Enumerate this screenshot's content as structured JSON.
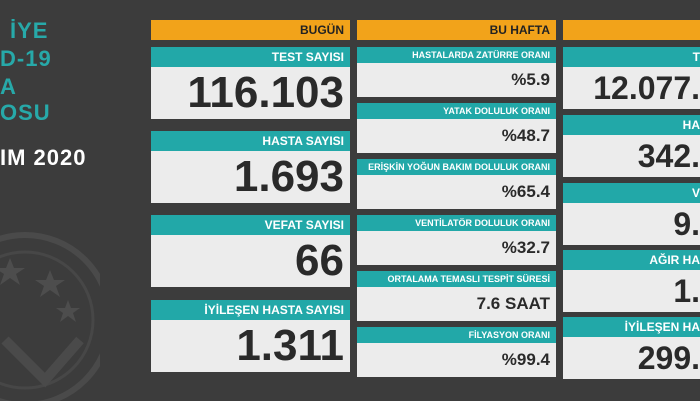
{
  "left_panel": {
    "line1": "İYE",
    "line2": "D-19",
    "line3": "A",
    "line4": "OSU",
    "date": "IM 2020"
  },
  "today": {
    "header": "BUGÜN",
    "cards": [
      {
        "label": "TEST SAYISI",
        "value": "116.103"
      },
      {
        "label": "HASTA SAYISI",
        "value": "1.693"
      },
      {
        "label": "VEFAT SAYISI",
        "value": "66"
      },
      {
        "label": "İYİLEŞEN HASTA SAYISI",
        "value": "1.311"
      }
    ]
  },
  "this_week": {
    "header": "BU HAFTA",
    "cards": [
      {
        "label": "HASTALARDA ZATÜRRE ORANI",
        "value": "%5.9"
      },
      {
        "label": "YATAK DOLULUK ORANI",
        "value": "%48.7"
      },
      {
        "label": "ERİŞKİN YOĞUN BAKIM DOLULUK ORANI",
        "value": "%65.4"
      },
      {
        "label": "VENTİLATÖR DOLULUK ORANI",
        "value": "%32.7"
      },
      {
        "label": "ORTALAMA TEMASLI TESPİT SÜRESİ",
        "value": "7.6 SAAT"
      },
      {
        "label": "FİLYASYON ORANI",
        "value": "%99.4"
      }
    ]
  },
  "total": {
    "header": "",
    "cards": [
      {
        "label": "T",
        "value": "12.077."
      },
      {
        "label": "HA",
        "value": "342."
      },
      {
        "label": "V",
        "value": "9."
      },
      {
        "label": "AĞIR HA",
        "value": "1."
      },
      {
        "label": "İYİLEŞEN HA",
        "value": "299."
      }
    ]
  },
  "colors": {
    "background": "#3c3c3c",
    "header": "#f2a31a",
    "label": "#22a8a8",
    "value_bg": "#ececec"
  }
}
